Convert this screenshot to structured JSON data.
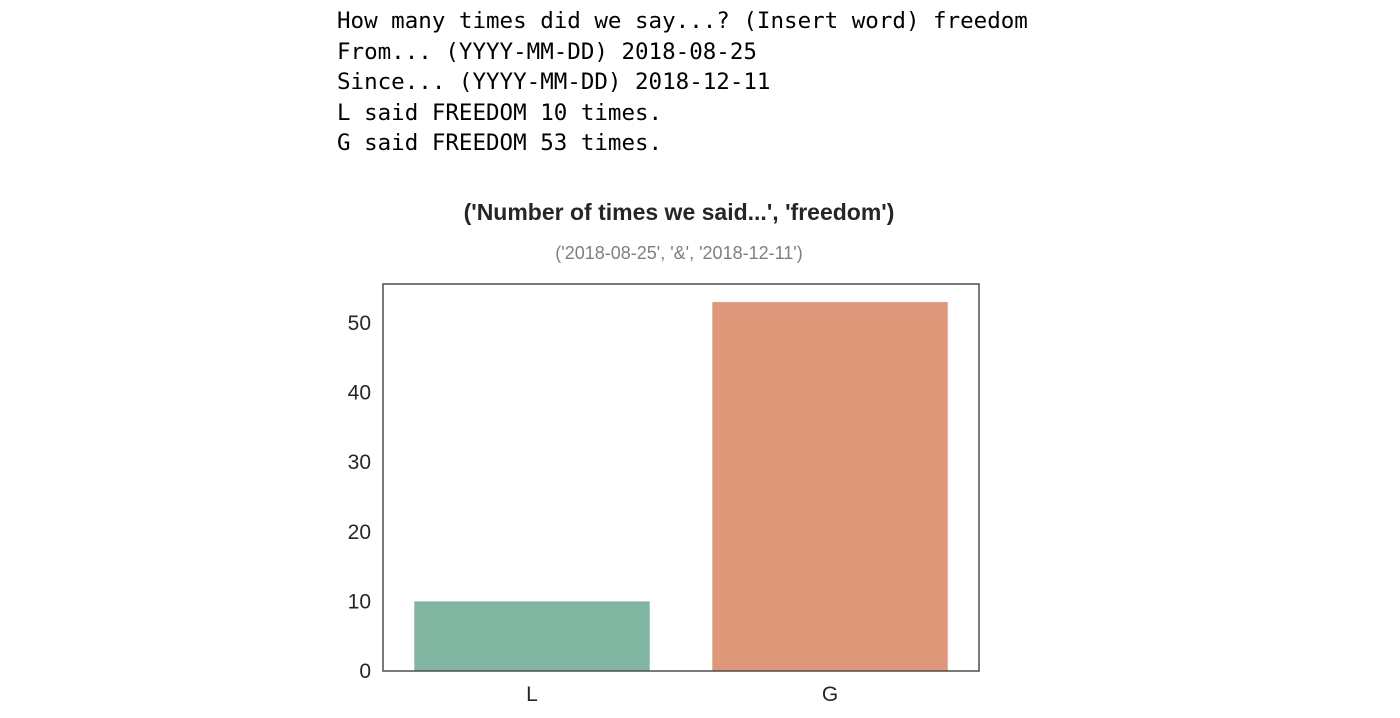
{
  "console": {
    "lines": [
      "How many times did we say...? (Insert word) freedom",
      "From... (YYYY-MM-DD) 2018-08-25",
      "Since... (YYYY-MM-DD) 2018-12-11",
      "L said FREEDOM 10 times.",
      "G said FREEDOM 53 times."
    ]
  },
  "chart_data": {
    "type": "bar",
    "title": "('Number of times we said...', 'freedom')",
    "subtitle": "('2018-08-25', '&', '2018-12-11')",
    "categories": [
      "L",
      "G"
    ],
    "values": [
      10,
      53
    ],
    "colors": [
      "#80b5a2",
      "#df977a"
    ],
    "ylim": [
      0,
      55.6
    ],
    "yticks": [
      0,
      10,
      20,
      30,
      40,
      50
    ],
    "xlabel": "",
    "ylabel": "",
    "grid": false,
    "legend": "none"
  }
}
